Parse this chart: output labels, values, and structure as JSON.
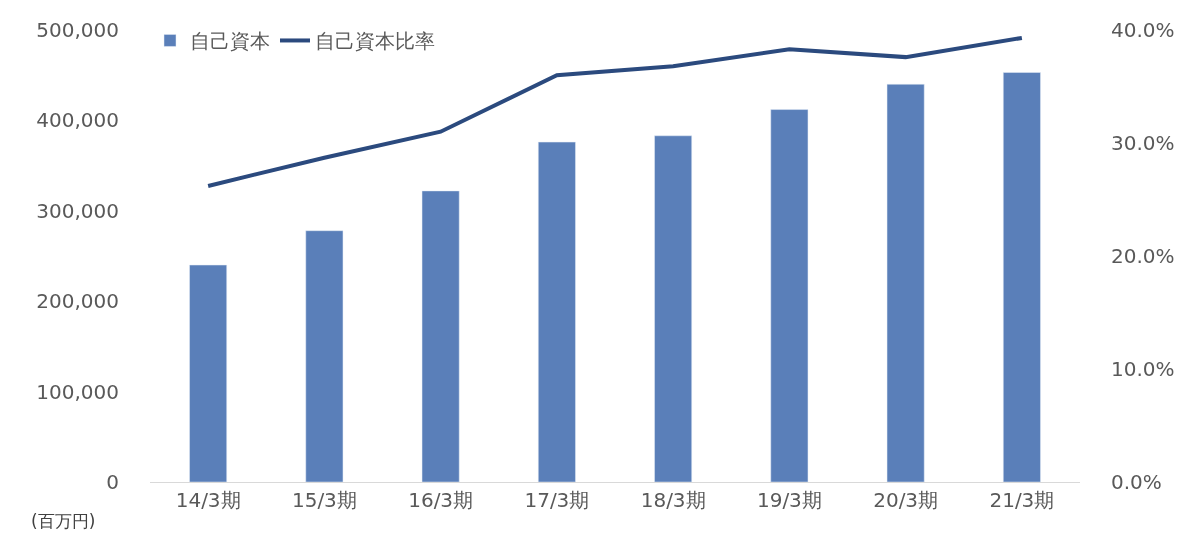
{
  "chart_data": {
    "type": "bar",
    "categories": [
      "14/3期",
      "15/3期",
      "16/3期",
      "17/3期",
      "18/3期",
      "19/3期",
      "20/3期",
      "21/3期"
    ],
    "series": [
      {
        "name": "自己資本",
        "color": "#5a7fb9",
        "values": [
          240000,
          278000,
          322000,
          376000,
          383000,
          412000,
          440000,
          453000
        ]
      },
      {
        "name": "自己資本比率",
        "type": "line",
        "axis": "y2",
        "color": "#2b4a7e",
        "marker": "none",
        "line_style": "solid",
        "values": [
          26.2,
          28.7,
          31.0,
          36.0,
          36.8,
          38.3,
          37.6,
          39.3
        ]
      }
    ],
    "ylim": [
      0,
      500000
    ],
    "yticks": [
      {
        "value": 0,
        "label": "0"
      },
      {
        "value": 100000,
        "label": "100,000"
      },
      {
        "value": 200000,
        "label": "200,000"
      },
      {
        "value": 300000,
        "label": "300,000"
      },
      {
        "value": 400000,
        "label": "400,000"
      },
      {
        "value": 500000,
        "label": "500,000"
      }
    ],
    "y2lim": [
      0,
      40
    ],
    "y2ticks": [
      {
        "value": 0,
        "label": "0.0%"
      },
      {
        "value": 10,
        "label": "10.0%"
      },
      {
        "value": 20,
        "label": "20.0%"
      },
      {
        "value": 30,
        "label": "30.0%"
      },
      {
        "value": 40,
        "label": "40.0%"
      }
    ],
    "annotations": [
      "(百万円)"
    ],
    "legend": "top left"
  }
}
